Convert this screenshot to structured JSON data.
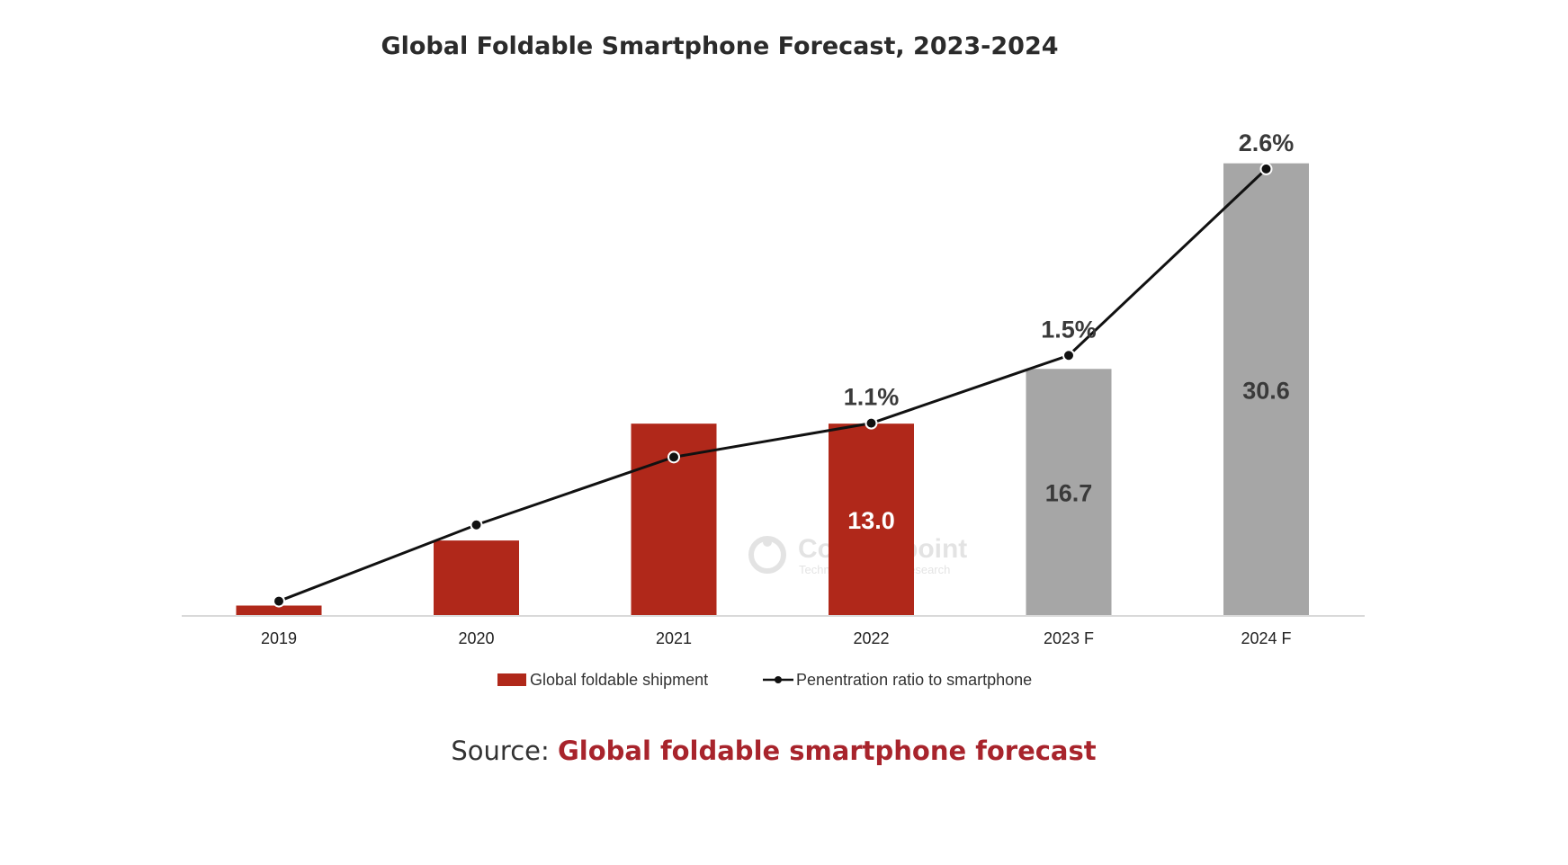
{
  "colors": {
    "actual_bar": "#b0281a",
    "forecast_bar": "#a6a6a6",
    "line": "#111111",
    "label_dark": "#3a3a3a",
    "label_white": "#ffffff",
    "source_link": "#a8242c"
  },
  "watermark": {
    "brand": "Counterpoint",
    "tagline": "Technology Market Research"
  },
  "source": {
    "prefix": "Source:",
    "link_text": "Global foldable smartphone forecast"
  },
  "chart_data": {
    "type": "bar",
    "title": "Global Foldable Smartphone Forecast, 2023-2024",
    "categories": [
      "2019",
      "2020",
      "2021",
      "2022",
      "2023 F",
      "2024 F"
    ],
    "series": [
      {
        "name": "Global foldable shipment",
        "kind": "bar",
        "values": [
          0.7,
          5.1,
          13.0,
          13.0,
          16.7,
          30.6
        ],
        "value_labels": [
          "",
          "",
          "",
          "13.0",
          "16.7",
          "30.6"
        ],
        "forecast": [
          false,
          false,
          false,
          false,
          true,
          true
        ]
      },
      {
        "name": "Penentration ratio to smartphone",
        "kind": "line",
        "values": [
          0.05,
          0.5,
          0.9,
          1.1,
          1.5,
          2.6
        ],
        "value_labels": [
          "",
          "",
          "",
          "1.1%",
          "1.5%",
          "2.6%"
        ]
      }
    ],
    "legend_position": "bottom-center",
    "grid": false,
    "xlabel": "",
    "ylabel": ""
  }
}
